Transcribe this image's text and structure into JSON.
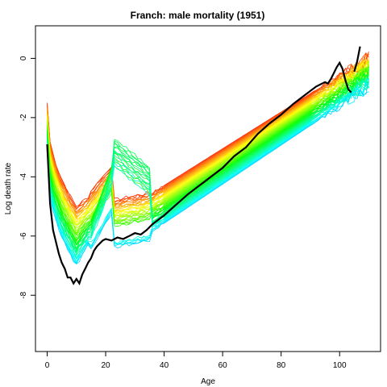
{
  "chart_data": {
    "type": "line",
    "title": "Franch: male mortality (1951)",
    "xlabel": "Age",
    "ylabel": "Log death rate",
    "xlim": [
      -4,
      114
    ],
    "ylim": [
      -9.9,
      1.1
    ],
    "x_ticks": [
      0,
      20,
      40,
      60,
      80,
      100
    ],
    "y_ticks": [
      -8,
      -6,
      -4,
      -2,
      0
    ],
    "y_tick_labels": [
      "-8",
      "-6",
      "-4",
      "-2",
      "0"
    ],
    "grid": false,
    "legend": "none",
    "background_curves": {
      "count": 52,
      "palette": "rainbow",
      "color_start": "#ff2a00",
      "color_end": "#00c8ff"
    },
    "highlight_series": {
      "color": "#000000",
      "points": [
        [
          0,
          -2.9
        ],
        [
          1,
          -4.9
        ],
        [
          2,
          -5.8
        ],
        [
          3,
          -6.2
        ],
        [
          4,
          -6.6
        ],
        [
          5,
          -6.9
        ],
        [
          6,
          -7.1
        ],
        [
          7,
          -7.4
        ],
        [
          8,
          -7.4
        ],
        [
          9,
          -7.6
        ],
        [
          10,
          -7.45
        ],
        [
          11,
          -7.6
        ],
        [
          12,
          -7.3
        ],
        [
          13,
          -7.1
        ],
        [
          14,
          -6.9
        ],
        [
          15,
          -6.75
        ],
        [
          16,
          -6.5
        ],
        [
          17,
          -6.35
        ],
        [
          18,
          -6.25
        ],
        [
          19,
          -6.15
        ],
        [
          20,
          -6.1
        ],
        [
          22,
          -6.15
        ],
        [
          24,
          -6.05
        ],
        [
          26,
          -6.1
        ],
        [
          28,
          -6.0
        ],
        [
          30,
          -5.9
        ],
        [
          32,
          -5.95
        ],
        [
          34,
          -5.8
        ],
        [
          36,
          -5.6
        ],
        [
          38,
          -5.45
        ],
        [
          40,
          -5.3
        ],
        [
          44,
          -4.95
        ],
        [
          48,
          -4.6
        ],
        [
          52,
          -4.3
        ],
        [
          56,
          -4.0
        ],
        [
          60,
          -3.7
        ],
        [
          64,
          -3.3
        ],
        [
          68,
          -3.0
        ],
        [
          72,
          -2.55
        ],
        [
          76,
          -2.2
        ],
        [
          80,
          -1.9
        ],
        [
          84,
          -1.55
        ],
        [
          88,
          -1.25
        ],
        [
          92,
          -0.95
        ],
        [
          95,
          -0.8
        ],
        [
          96,
          -0.85
        ],
        [
          97,
          -0.7
        ],
        [
          98,
          -0.5
        ],
        [
          99,
          -0.3
        ],
        [
          100,
          -0.15
        ],
        [
          101,
          -0.35
        ],
        [
          102,
          -0.75
        ],
        [
          103,
          -1.05
        ],
        [
          104,
          -1.15
        ]
      ],
      "segment2": [
        [
          105,
          -0.45
        ],
        [
          106,
          -0.1
        ],
        [
          107,
          0.4
        ]
      ]
    }
  }
}
